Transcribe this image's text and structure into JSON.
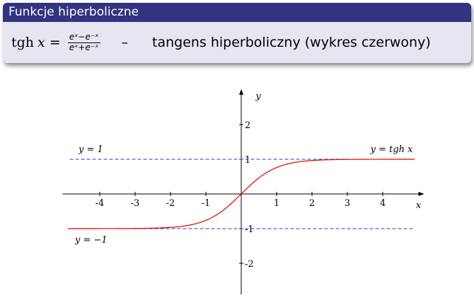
{
  "slide": {
    "title": "Funkcje hiperboliczne",
    "formula": {
      "lhs_fn": "tgh",
      "lhs_var": "x",
      "numerator": "eˣ−e⁻ˣ",
      "denominator": "eˣ+e⁻ˣ"
    },
    "separator": "–",
    "description": "tangens hiperboliczny (wykres czerwony)"
  },
  "colors": {
    "title_bar": "#33337f",
    "block_bg": "#e6e6f2",
    "curve": "#e00000",
    "asymptote": "#3333cc"
  },
  "chart_data": {
    "type": "line",
    "function": "tanh",
    "xlim": [
      -5,
      5
    ],
    "ylim": [
      -2.9,
      2.9
    ],
    "xticks": [
      -4,
      -3,
      -2,
      -1,
      1,
      2,
      3,
      4
    ],
    "yticks": [
      -2,
      -1,
      1,
      2
    ],
    "xlabel": "x",
    "ylabel": "y",
    "series": [
      {
        "color": "#e00000",
        "x_range": [
          -4.9,
          4.9
        ]
      }
    ],
    "asymptotes": [
      {
        "y": 1,
        "label": "y = 1"
      },
      {
        "y": -1,
        "label": "y = −1"
      }
    ],
    "curve_label": "y = tgh x",
    "grid": false
  }
}
